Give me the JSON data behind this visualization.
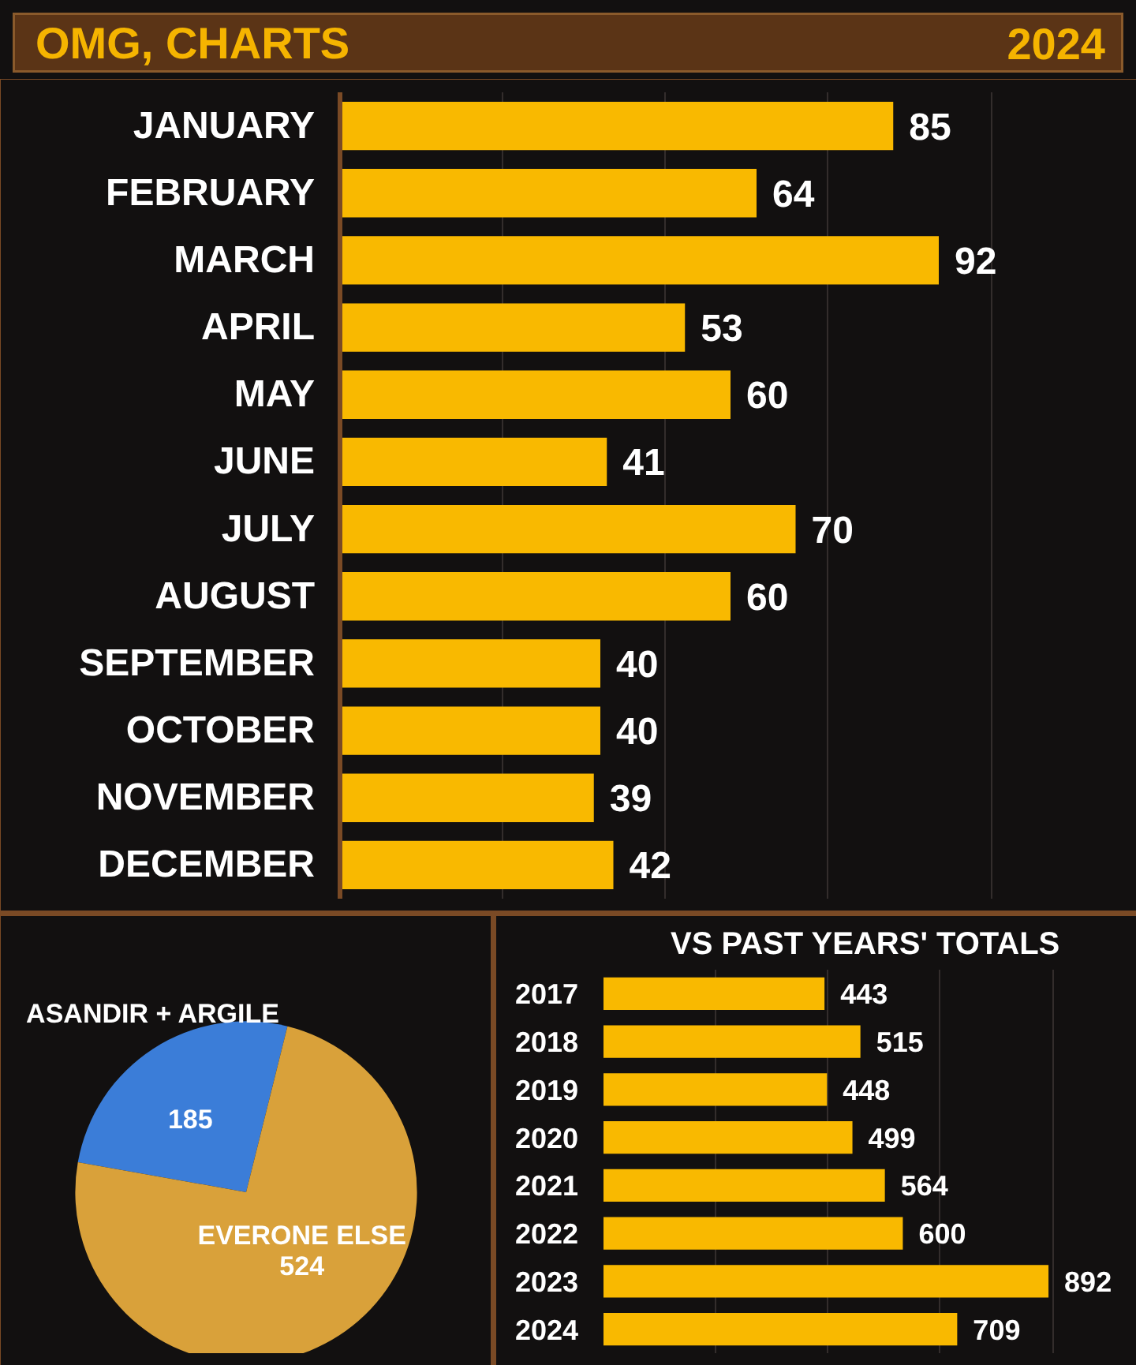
{
  "chart_data": [
    {
      "type": "bar",
      "orientation": "horizontal",
      "title": "OMG, CHARTS",
      "subtitle": "2024",
      "categories": [
        "JANUARY",
        "FEBRUARY",
        "MARCH",
        "APRIL",
        "MAY",
        "JUNE",
        "JULY",
        "AUGUST",
        "SEPTEMBER",
        "OCTOBER",
        "NOVEMBER",
        "DECEMBER"
      ],
      "values": [
        85,
        64,
        92,
        53,
        60,
        41,
        70,
        60,
        40,
        40,
        39,
        42
      ],
      "color": "#f9b900",
      "xlim": [
        0,
        120
      ],
      "xticks": [
        {
          "value": 25,
          "label": null
        },
        {
          "value": 50,
          "label": null
        },
        {
          "value": 75,
          "label": null
        },
        {
          "value": 100,
          "label": null
        }
      ],
      "grid": "x",
      "tick_labels": "y",
      "data_labels": true
    },
    {
      "type": "pie",
      "categories": [
        "ASANDIR + ARGILE",
        "EVERONE ELSE"
      ],
      "values": [
        185,
        524
      ],
      "colors": [
        "#3b7dd8",
        "#d9a13a"
      ],
      "data_labels": true
    },
    {
      "type": "bar",
      "orientation": "horizontal",
      "title": "VS PAST YEARS' TOTALS",
      "categories": [
        "2017",
        "2018",
        "2019",
        "2020",
        "2021",
        "2022",
        "2023",
        "2024"
      ],
      "values": [
        443,
        515,
        448,
        499,
        564,
        600,
        892,
        709
      ],
      "color": "#f9b900",
      "xlim": [
        0,
        1050
      ],
      "xticks": [
        {
          "value": 225,
          "label": null
        },
        {
          "value": 450,
          "label": null
        },
        {
          "value": 675,
          "label": null
        },
        {
          "value": 900,
          "label": null
        }
      ],
      "grid": "x",
      "tick_labels": "y",
      "data_labels": true
    }
  ]
}
